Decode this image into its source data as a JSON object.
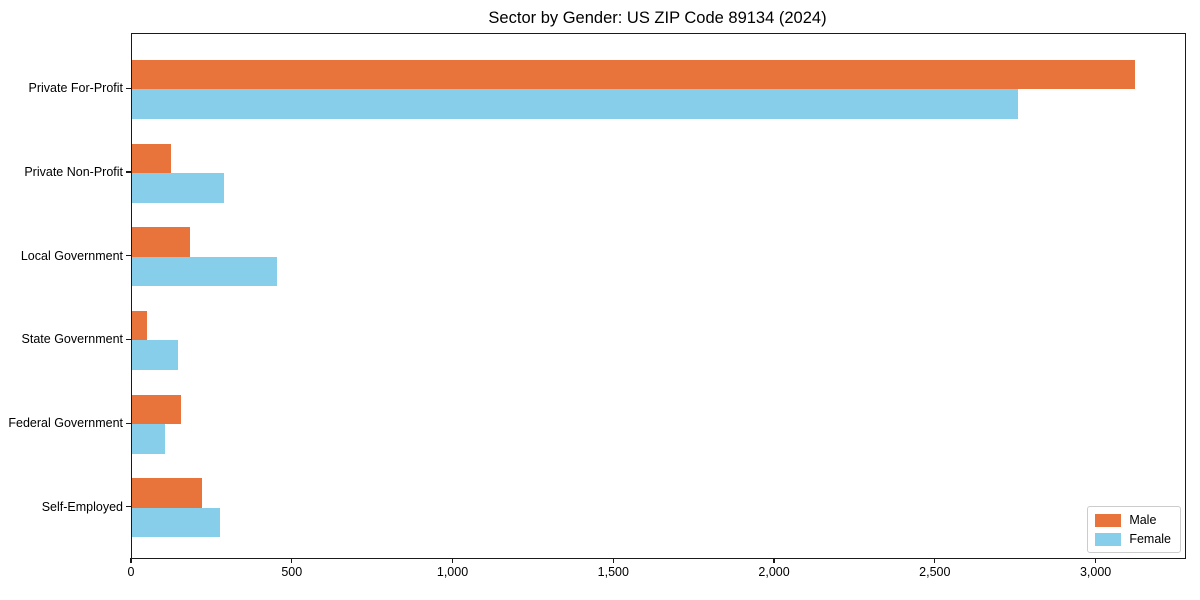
{
  "chart_data": {
    "type": "bar",
    "orientation": "horizontal",
    "title": "Sector by Gender: US ZIP Code 89134 (2024)",
    "xlabel": "",
    "ylabel": "",
    "grid": false,
    "legend_position": "lower right",
    "xlim": [
      0,
      3275
    ],
    "categories": [
      "Private For-Profit",
      "Private Non-Profit",
      "Local Government",
      "State Government",
      "Federal Government",
      "Self-Employed"
    ],
    "series": [
      {
        "name": "Male",
        "color": "#E8743B",
        "values": [
          3120,
          120,
          180,
          47,
          152,
          218
        ]
      },
      {
        "name": "Female",
        "color": "#87CEEB",
        "values": [
          2755,
          287,
          450,
          144,
          104,
          274
        ]
      }
    ],
    "xticks": [
      {
        "value": 0,
        "label": "0"
      },
      {
        "value": 500,
        "label": "500"
      },
      {
        "value": 1000,
        "label": "1,000"
      },
      {
        "value": 1500,
        "label": "1,500"
      },
      {
        "value": 2000,
        "label": "2,000"
      },
      {
        "value": 2500,
        "label": "2,500"
      },
      {
        "value": 3000,
        "label": "3,000"
      }
    ]
  }
}
